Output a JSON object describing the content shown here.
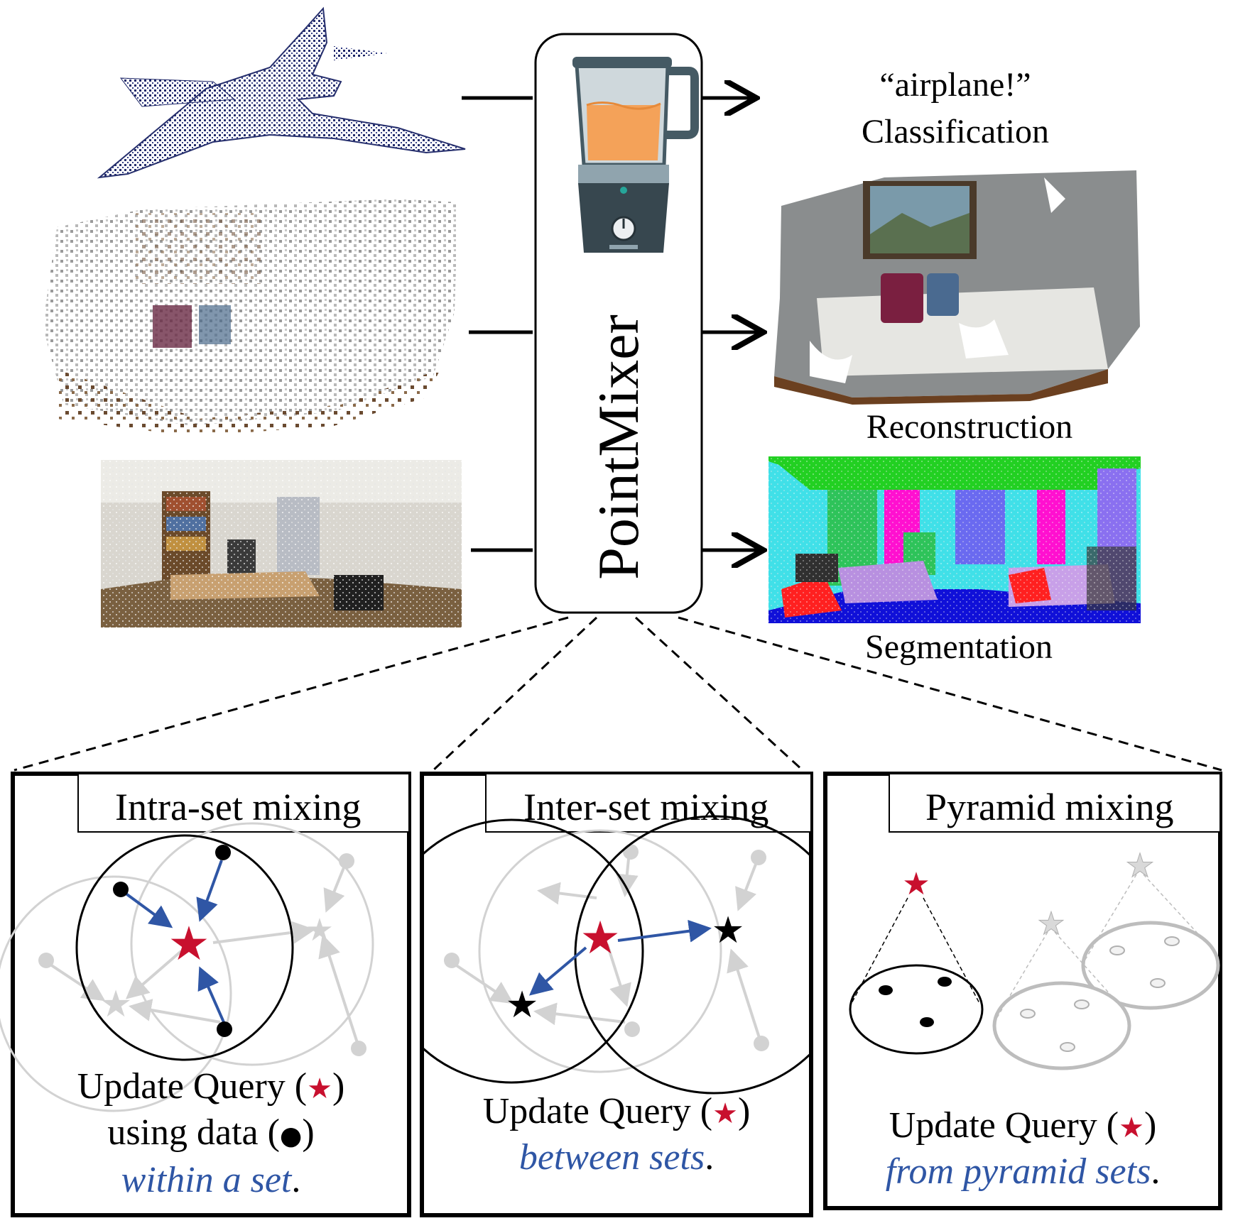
{
  "center": {
    "module_name": "PointMixer"
  },
  "outputs": {
    "classification_quote": "“airplane!”",
    "classification": "Classification",
    "reconstruction": "Reconstruction",
    "segmentation": "Segmentation"
  },
  "panels": [
    {
      "title": "Intra-set mixing",
      "caption_line1": "Update Query (",
      "caption_line1_end": ")",
      "caption_line2": "using  data (",
      "caption_line2_end": ")",
      "caption_line3": "within a set",
      "caption_line3_end": "."
    },
    {
      "title": "Inter-set mixing",
      "caption_line1": "Update Query (",
      "caption_line1_end": ")",
      "caption_line2": "between sets",
      "caption_line2_end": "."
    },
    {
      "title": "Pyramid mixing",
      "caption_line1": "Update Query (",
      "caption_line1_end": ")",
      "caption_line2": "from pyramid sets",
      "caption_line2_end": "."
    }
  ],
  "symbols": {
    "star": "★",
    "dot": "●"
  },
  "colors": {
    "query_star": "#c8102e",
    "arrow_blue": "#2f56a5",
    "italic_blue": "#2f56a5",
    "faded": "#d2d2d2",
    "airplane": "#1b2466"
  }
}
